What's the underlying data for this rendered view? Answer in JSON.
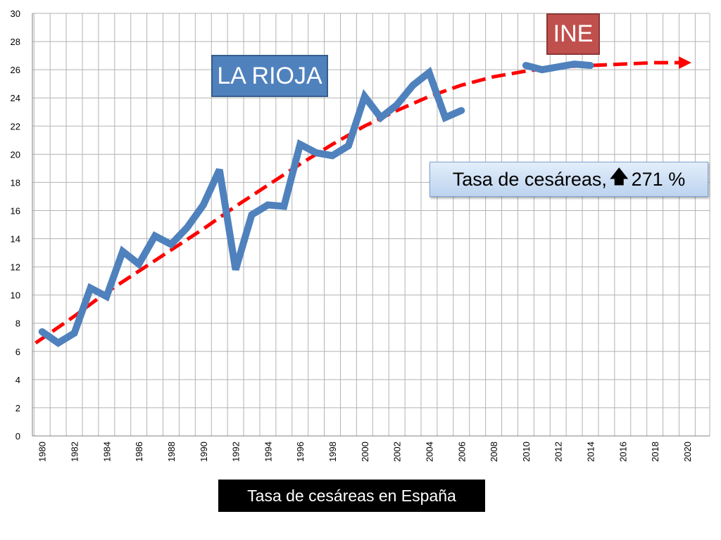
{
  "chart_data": {
    "type": "line",
    "title": "",
    "xlabel": "Tasa de cesáreas en España",
    "ylabel": "",
    "xlim": [
      1980,
      2020
    ],
    "ylim": [
      0,
      30
    ],
    "grid": true,
    "y_ticks": [
      0,
      2,
      4,
      6,
      8,
      10,
      12,
      14,
      16,
      18,
      20,
      22,
      24,
      26,
      28,
      30
    ],
    "x_ticks": [
      1980,
      1982,
      1984,
      1986,
      1988,
      1990,
      1992,
      1994,
      1996,
      1998,
      2000,
      2002,
      2004,
      2006,
      2008,
      2010,
      2012,
      2014,
      2016,
      2018,
      2020
    ],
    "series": [
      {
        "name": "",
        "color": "#4f81bd",
        "segments": [
          {
            "x": [
              1980,
              1981,
              1982,
              1983,
              1984,
              1985,
              1986,
              1987,
              1988,
              1989,
              1990,
              1991,
              1992,
              1993,
              1994,
              1995,
              1996,
              1997,
              1998,
              1999,
              2000,
              2001,
              2002,
              2003,
              2004,
              2005,
              2006
            ],
            "y": [
              7.4,
              6.6,
              7.3,
              10.5,
              9.9,
              13.1,
              12.2,
              14.2,
              13.6,
              14.8,
              16.4,
              18.9,
              11.8,
              15.7,
              16.4,
              16.3,
              20.7,
              20.1,
              19.9,
              20.6,
              24.1,
              22.6,
              23.5,
              24.9,
              25.8,
              22.6,
              23.1
            ]
          },
          {
            "x": [
              2010,
              2011,
              2012,
              2013,
              2014
            ],
            "y": [
              26.3,
              26.0,
              26.2,
              26.4,
              26.3
            ]
          }
        ]
      },
      {
        "name": "trend",
        "style": "dashed",
        "color": "#ff0000",
        "x": [
          1979.6,
          1982,
          1984,
          1986,
          1988,
          1990,
          1992,
          1994,
          1996,
          1998,
          2000,
          2002,
          2004,
          2006,
          2008,
          2010,
          2012,
          2014,
          2016,
          2018,
          2020
        ],
        "y": [
          6.6,
          8.5,
          10.2,
          11.7,
          13.2,
          14.7,
          16.3,
          17.8,
          19.3,
          20.7,
          22.0,
          23.1,
          24.1,
          24.9,
          25.5,
          25.9,
          26.2,
          26.3,
          26.4,
          26.5,
          26.5
        ]
      }
    ],
    "annotations": {
      "la_rioja": "LA RIOJA",
      "ine": "INE",
      "tasa_prefix": "Tasa de cesáreas,",
      "tasa_value": "271 %"
    }
  },
  "colors": {
    "line": "#4f81bd",
    "trend": "#ff0000",
    "ine_box": "#c0504d",
    "grid": "#b3b3b3"
  },
  "icons": {
    "increase": "arrow-up-icon"
  }
}
